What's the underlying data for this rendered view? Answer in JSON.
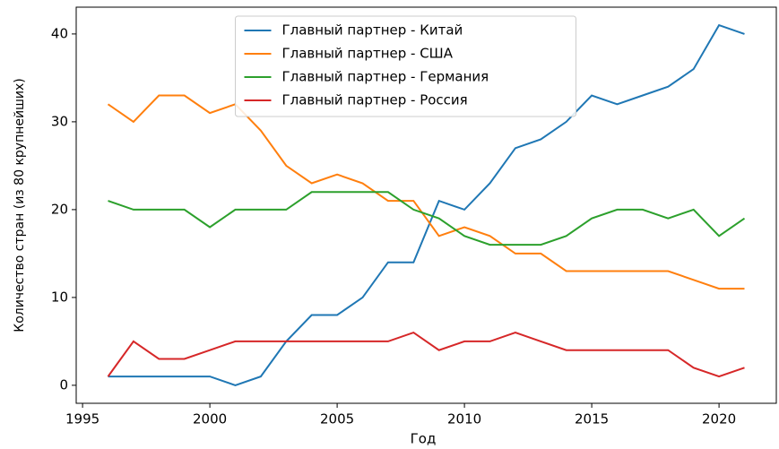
{
  "chart_data": {
    "type": "line",
    "xlabel": "Год",
    "ylabel": "Количество стран (из 80 крупнейших)",
    "x": [
      1996,
      1997,
      1998,
      1999,
      2000,
      2001,
      2002,
      2003,
      2004,
      2005,
      2006,
      2007,
      2008,
      2009,
      2010,
      2011,
      2012,
      2013,
      2014,
      2015,
      2016,
      2017,
      2018,
      2019,
      2020,
      2021
    ],
    "series": [
      {
        "name": "Главный партнер - Китай",
        "color": "#1f77b4",
        "values": [
          1,
          1,
          1,
          1,
          1,
          0,
          1,
          5,
          8,
          8,
          10,
          14,
          14,
          21,
          20,
          23,
          27,
          28,
          30,
          33,
          32,
          33,
          34,
          36,
          41,
          40
        ]
      },
      {
        "name": "Главный партнер - США",
        "color": "#ff7f0e",
        "values": [
          32,
          30,
          33,
          33,
          31,
          32,
          29,
          25,
          23,
          24,
          23,
          21,
          21,
          17,
          18,
          17,
          15,
          15,
          13,
          13,
          13,
          13,
          13,
          12,
          11,
          11
        ]
      },
      {
        "name": "Главный партнер - Германия",
        "color": "#2ca02c",
        "values": [
          21,
          20,
          20,
          20,
          18,
          20,
          20,
          20,
          22,
          22,
          22,
          22,
          20,
          19,
          17,
          16,
          16,
          16,
          17,
          19,
          20,
          20,
          19,
          20,
          17,
          19
        ]
      },
      {
        "name": "Главный партнер - Россия",
        "color": "#d62728",
        "values": [
          1,
          5,
          3,
          3,
          4,
          5,
          5,
          5,
          5,
          5,
          5,
          5,
          6,
          4,
          5,
          5,
          6,
          5,
          4,
          4,
          4,
          4,
          4,
          2,
          1,
          2
        ]
      }
    ],
    "xlim": [
      1994.75,
      2022.25
    ],
    "xticks": [
      1995,
      2000,
      2005,
      2010,
      2015,
      2020
    ],
    "ylim": [
      -2.05,
      43.05
    ],
    "yticks": [
      0,
      10,
      20,
      30,
      40
    ],
    "legend": "upper center"
  }
}
